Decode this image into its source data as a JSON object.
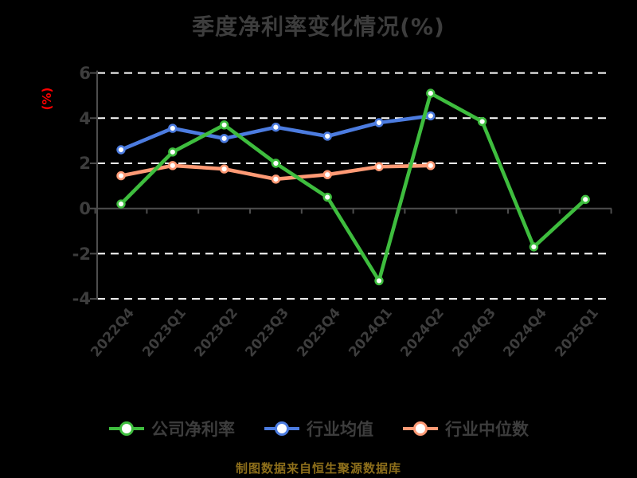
{
  "title": "季度净利率变化情况(%)",
  "caption": "制图数据来自恒生聚源数据库",
  "colors": {
    "background": "#000000",
    "title_text": "#3d3d3d",
    "tick_label": "#3d3d3d",
    "axis_line": "#4d4d4d",
    "grid_line": "#ffffff",
    "ylabel_text": "#ff0000",
    "legend_text": "#3d3d3d",
    "caption_text": "#8e6f1b",
    "marker_fill": "#ffffff"
  },
  "chart_data": {
    "type": "line",
    "title": "季度净利率变化情况(%)",
    "xlabel": "",
    "ylabel": "(%)",
    "ylim": [
      -4,
      6
    ],
    "yticks": [
      6,
      4,
      2,
      0,
      -2,
      -4
    ],
    "ytick_labels": [
      "6",
      "4",
      "2",
      "0",
      "-2",
      "-4"
    ],
    "grid": "horizontal-dashed-white-on-black",
    "legend_position": "bottom",
    "categories": [
      "2022Q4",
      "2023Q1",
      "2023Q2",
      "2023Q3",
      "2023Q4",
      "2024Q1",
      "2024Q2",
      "2024Q3",
      "2024Q4",
      "2025Q1"
    ],
    "series": [
      {
        "name": "公司净利率",
        "color": "#3ebd3e",
        "marker": "circle-white-fill",
        "values": [
          0.2,
          2.5,
          3.7,
          2.0,
          0.5,
          -3.2,
          5.1,
          3.85,
          -1.7,
          0.4
        ]
      },
      {
        "name": "行业均值",
        "color": "#4c7ce0",
        "marker": "circle-white-fill",
        "values": [
          2.6,
          3.55,
          3.1,
          3.6,
          3.2,
          3.8,
          4.1,
          null,
          null,
          null
        ]
      },
      {
        "name": "行业中位数",
        "color": "#ff9a75",
        "marker": "circle-white-fill",
        "values": [
          1.45,
          1.9,
          1.75,
          1.3,
          1.5,
          1.85,
          1.9,
          null,
          null,
          null
        ]
      }
    ]
  }
}
